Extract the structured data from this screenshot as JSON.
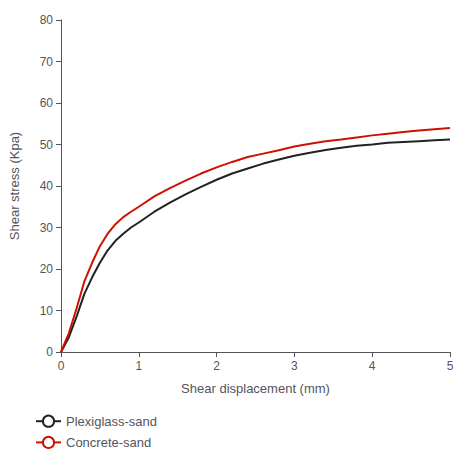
{
  "chart_data": {
    "type": "line",
    "xlabel": "Shear displacement (mm)",
    "ylabel": "Shear stress (Kpa)",
    "x": [
      0.0,
      0.1,
      0.2,
      0.3,
      0.4,
      0.5,
      0.6,
      0.7,
      0.8,
      0.9,
      1.0,
      1.2,
      1.4,
      1.6,
      1.8,
      2.0,
      2.2,
      2.4,
      2.6,
      2.8,
      3.0,
      3.2,
      3.4,
      3.6,
      3.8,
      4.0,
      4.2,
      4.4,
      4.6,
      4.8,
      5.0
    ],
    "series": [
      {
        "name": "Plexiglass-sand",
        "color": "#222222",
        "values": [
          0.0,
          3.5,
          8.5,
          14.0,
          18.0,
          21.5,
          24.5,
          26.8,
          28.5,
          30.0,
          31.2,
          33.8,
          36.0,
          38.0,
          39.8,
          41.5,
          43.0,
          44.2,
          45.4,
          46.4,
          47.3,
          48.0,
          48.7,
          49.2,
          49.7,
          50.0,
          50.4,
          50.6,
          50.8,
          51.0,
          51.2
        ]
      },
      {
        "name": "Concrete-sand",
        "color": "#cc1100",
        "values": [
          0.0,
          4.5,
          10.5,
          17.0,
          21.5,
          25.5,
          28.5,
          30.8,
          32.5,
          33.8,
          35.0,
          37.5,
          39.5,
          41.3,
          43.0,
          44.5,
          45.8,
          47.0,
          47.8,
          48.6,
          49.5,
          50.2,
          50.8,
          51.2,
          51.7,
          52.2,
          52.6,
          53.0,
          53.4,
          53.7,
          54.0
        ]
      }
    ],
    "xlim": [
      0,
      5
    ],
    "ylim": [
      0,
      80
    ],
    "xticks": [
      0,
      1,
      2,
      3,
      4,
      5
    ],
    "yticks": [
      0,
      10,
      20,
      30,
      40,
      50,
      60,
      70,
      80
    ],
    "grid": false,
    "legend": "lower left"
  }
}
